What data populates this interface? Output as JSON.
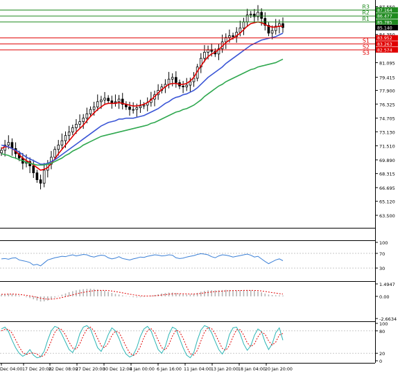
{
  "chart_data": [
    {
      "panel": "price",
      "type": "candlestick",
      "y_ticks": [
        "87.550",
        "85.745",
        "84.350",
        "82.650",
        "81.095",
        "79.415",
        "77.900",
        "76.325",
        "74.705",
        "73.130",
        "71.510",
        "69.890",
        "68.315",
        "66.695",
        "65.120",
        "63.500"
      ],
      "ylim": [
        62.3,
        88.0
      ],
      "levels": [
        {
          "label": "R3",
          "value": 87.164,
          "value_text": "87.164",
          "color": "#1f8a1f"
        },
        {
          "label": "R2",
          "value": 86.477,
          "value_text": "86.477",
          "color": "#1f8a1f"
        },
        {
          "label": "R1",
          "value": 85.785,
          "value_text": "85.785",
          "color": "#1f8a1f"
        },
        {
          "label": "S1",
          "value": 83.952,
          "value_text": "83.952",
          "color": "#e00000"
        },
        {
          "label": "S2",
          "value": 83.263,
          "value_text": "83.263",
          "color": "#e00000"
        },
        {
          "label": "S3",
          "value": 82.574,
          "value_text": "82.574",
          "color": "#e00000"
        }
      ],
      "current_price": 85.14,
      "current_price_text": "85.140",
      "close_series": [
        71.0,
        71.6,
        71.9,
        71.2,
        70.6,
        70.1,
        69.5,
        69.7,
        69.2,
        68.4,
        67.6,
        67.2,
        68.7,
        69.4,
        70.2,
        71.1,
        71.6,
        72.1,
        72.7,
        73.1,
        73.6,
        74.0,
        74.3,
        74.7,
        75.2,
        75.7,
        76.0,
        76.6,
        76.8,
        77.0,
        76.7,
        76.5,
        76.6,
        76.9,
        76.3,
        76.0,
        75.7,
        75.7,
        75.9,
        76.1,
        76.2,
        76.5,
        76.9,
        77.4,
        77.9,
        78.3,
        78.6,
        79.2,
        79.4,
        78.8,
        78.4,
        78.3,
        78.5,
        78.9,
        79.3,
        80.6,
        81.6,
        82.3,
        82.6,
        82.4,
        82.1,
        82.7,
        83.5,
        84.0,
        84.2,
        84.1,
        84.6,
        85.1,
        85.8,
        86.6,
        86.7,
        86.4,
        86.9,
        86.2,
        85.4,
        84.5,
        84.8,
        85.3,
        85.6,
        85.14
      ],
      "moving_averages": [
        {
          "color": "#e00000",
          "values": [
            71.2,
            71.4,
            71.4,
            71.2,
            70.9,
            70.5,
            70.1,
            69.8,
            69.6,
            69.3,
            69.0,
            68.7,
            68.8,
            69.0,
            69.5,
            70.0,
            70.6,
            71.1,
            71.6,
            72.1,
            72.6,
            73.1,
            73.5,
            73.9,
            74.4,
            74.9,
            75.3,
            75.7,
            76.0,
            76.3,
            76.4,
            76.4,
            76.4,
            76.5,
            76.4,
            76.3,
            76.2,
            76.1,
            76.1,
            76.2,
            76.3,
            76.5,
            76.8,
            77.2,
            77.6,
            78.0,
            78.3,
            78.6,
            78.7,
            78.7,
            78.6,
            78.6,
            78.7,
            79.0,
            79.4,
            80.1,
            80.7,
            81.3,
            81.8,
            82.1,
            82.3,
            82.6,
            83.0,
            83.4,
            83.7,
            83.9,
            84.2,
            84.5,
            84.9,
            85.3,
            85.6,
            85.7,
            85.8,
            85.7,
            85.5,
            85.3,
            85.2,
            85.2,
            85.3,
            85.3
          ]
        },
        {
          "color": "#3a55d6",
          "values": [
            71.6,
            71.5,
            71.4,
            71.2,
            71.0,
            70.8,
            70.5,
            70.2,
            70.0,
            69.8,
            69.6,
            69.4,
            69.4,
            69.5,
            69.7,
            69.9,
            70.2,
            70.5,
            70.8,
            71.1,
            71.4,
            71.7,
            72.0,
            72.3,
            72.6,
            72.9,
            73.2,
            73.5,
            73.8,
            74.0,
            74.2,
            74.3,
            74.4,
            74.6,
            74.6,
            74.7,
            74.7,
            74.7,
            74.8,
            74.9,
            75.0,
            75.2,
            75.4,
            75.6,
            75.8,
            76.1,
            76.4,
            76.6,
            76.9,
            77.1,
            77.2,
            77.4,
            77.5,
            77.7,
            77.9,
            78.2,
            78.6,
            79.0,
            79.4,
            79.7,
            80.0,
            80.3,
            80.6,
            81.0,
            81.3,
            81.6,
            81.9,
            82.2,
            82.5,
            82.8,
            83.1,
            83.3,
            83.5,
            83.7,
            83.8,
            83.9,
            84.0,
            84.1,
            84.3,
            84.5
          ]
        },
        {
          "color": "#2fa84f",
          "values": [
            70.6,
            70.5,
            70.4,
            70.2,
            70.1,
            69.9,
            69.8,
            69.6,
            69.5,
            69.4,
            69.3,
            69.3,
            69.3,
            69.4,
            69.5,
            69.7,
            69.9,
            70.1,
            70.4,
            70.6,
            70.9,
            71.1,
            71.3,
            71.6,
            71.8,
            72.0,
            72.2,
            72.4,
            72.6,
            72.7,
            72.8,
            72.9,
            73.0,
            73.1,
            73.2,
            73.3,
            73.4,
            73.5,
            73.6,
            73.7,
            73.8,
            73.9,
            74.1,
            74.2,
            74.4,
            74.6,
            74.8,
            75.0,
            75.2,
            75.4,
            75.5,
            75.7,
            75.8,
            76.0,
            76.2,
            76.5,
            76.8,
            77.2,
            77.5,
            77.8,
            78.1,
            78.4,
            78.6,
            78.9,
            79.1,
            79.3,
            79.5,
            79.7,
            79.9,
            80.1,
            80.3,
            80.4,
            80.6,
            80.7,
            80.8,
            80.9,
            81.0,
            81.1,
            81.3,
            81.5
          ]
        }
      ]
    },
    {
      "panel": "rsi",
      "type": "line",
      "y_ticks": [
        "100",
        "70",
        "30",
        "0"
      ],
      "ylim": [
        0,
        100
      ],
      "color": "#3a7fd6",
      "values": [
        55,
        56,
        54,
        57,
        58,
        52,
        50,
        48,
        45,
        38,
        40,
        36,
        44,
        52,
        55,
        58,
        60,
        62,
        61,
        64,
        66,
        63,
        65,
        67,
        66,
        62,
        60,
        63,
        65,
        64,
        58,
        55,
        57,
        61,
        56,
        54,
        52,
        55,
        57,
        60,
        59,
        62,
        64,
        66,
        65,
        63,
        64,
        66,
        65,
        58,
        56,
        57,
        60,
        62,
        64,
        67,
        69,
        68,
        66,
        61,
        58,
        63,
        66,
        65,
        63,
        60,
        62,
        64,
        66,
        68,
        65,
        60,
        62,
        55,
        48,
        42,
        47,
        52,
        55,
        50
      ]
    },
    {
      "panel": "macd",
      "type": "histogram",
      "y_ticks": [
        "1.4947",
        "0.00",
        "-2.6634"
      ],
      "ylim": [
        -2.6634,
        1.4947
      ],
      "bar_color": "#b4b4b4",
      "signal_color": "#e00000",
      "histogram": [
        0.2,
        0.25,
        0.3,
        0.28,
        0.2,
        0.1,
        0.0,
        -0.1,
        -0.2,
        -0.35,
        -0.5,
        -0.62,
        -0.6,
        -0.5,
        -0.35,
        -0.15,
        0.05,
        0.2,
        0.35,
        0.5,
        0.62,
        0.72,
        0.8,
        0.86,
        0.9,
        0.92,
        0.88,
        0.82,
        0.75,
        0.68,
        0.55,
        0.42,
        0.3,
        0.22,
        0.12,
        0.04,
        -0.04,
        -0.1,
        -0.12,
        -0.1,
        -0.06,
        0.0,
        0.08,
        0.16,
        0.25,
        0.34,
        0.4,
        0.45,
        0.46,
        0.4,
        0.3,
        0.24,
        0.2,
        0.22,
        0.3,
        0.42,
        0.55,
        0.66,
        0.72,
        0.74,
        0.72,
        0.73,
        0.76,
        0.78,
        0.76,
        0.72,
        0.7,
        0.72,
        0.74,
        0.76,
        0.74,
        0.68,
        0.6,
        0.48,
        0.34,
        0.22,
        0.16,
        0.14,
        0.12,
        0.1
      ],
      "signal": [
        0.24,
        0.25,
        0.27,
        0.27,
        0.26,
        0.23,
        0.18,
        0.12,
        0.06,
        -0.02,
        -0.12,
        -0.22,
        -0.3,
        -0.34,
        -0.34,
        -0.3,
        -0.23,
        -0.14,
        -0.04,
        0.07,
        0.18,
        0.29,
        0.39,
        0.48,
        0.56,
        0.63,
        0.68,
        0.71,
        0.72,
        0.72,
        0.69,
        0.64,
        0.57,
        0.5,
        0.42,
        0.34,
        0.26,
        0.19,
        0.13,
        0.08,
        0.05,
        0.04,
        0.05,
        0.07,
        0.11,
        0.16,
        0.21,
        0.26,
        0.3,
        0.32,
        0.32,
        0.31,
        0.29,
        0.28,
        0.28,
        0.31,
        0.36,
        0.42,
        0.48,
        0.53,
        0.57,
        0.6,
        0.63,
        0.66,
        0.68,
        0.69,
        0.69,
        0.7,
        0.71,
        0.72,
        0.72,
        0.71,
        0.69,
        0.65,
        0.59,
        0.52,
        0.45,
        0.39,
        0.33,
        0.28
      ]
    },
    {
      "panel": "stochastic",
      "type": "line",
      "y_ticks": [
        "100",
        "80",
        "20",
        "0"
      ],
      "ylim": [
        0,
        100
      ],
      "k_color": "#2bb5b5",
      "d_color": "#e00000",
      "k": [
        85,
        90,
        78,
        55,
        35,
        20,
        12,
        18,
        30,
        15,
        8,
        10,
        25,
        55,
        80,
        92,
        88,
        70,
        50,
        30,
        22,
        40,
        72,
        90,
        94,
        85,
        60,
        35,
        25,
        45,
        70,
        88,
        80,
        60,
        35,
        18,
        10,
        15,
        35,
        65,
        85,
        92,
        80,
        55,
        30,
        20,
        38,
        70,
        90,
        85,
        60,
        35,
        15,
        8,
        22,
        55,
        82,
        94,
        90,
        75,
        52,
        30,
        18,
        35,
        70,
        88,
        90,
        72,
        45,
        28,
        40,
        68,
        85,
        78,
        50,
        30,
        45,
        75,
        88,
        55
      ],
      "d": [
        80,
        84,
        84,
        74,
        56,
        37,
        22,
        17,
        20,
        21,
        18,
        11,
        14,
        30,
        53,
        76,
        87,
        83,
        69,
        50,
        34,
        31,
        45,
        67,
        85,
        90,
        80,
        60,
        40,
        35,
        47,
        68,
        79,
        76,
        58,
        38,
        21,
        14,
        20,
        38,
        62,
        81,
        86,
        76,
        55,
        35,
        29,
        43,
        66,
        82,
        78,
        60,
        37,
        19,
        15,
        28,
        53,
        77,
        89,
        86,
        72,
        52,
        33,
        28,
        41,
        64,
        83,
        83,
        69,
        48,
        38,
        45,
        64,
        77,
        71,
        53,
        42,
        50,
        69,
        73
      ]
    }
  ],
  "x_axis": {
    "tick_labels": [
      "Dec 04:00",
      "17 Dec 20:00",
      "22 Dec 08:00",
      "27 Dec 20:00",
      "30 Dec 12:00",
      "4 Jan 00:00",
      "6 Jan 16:00",
      "11 Jan 04:00",
      "13 Jan 20:00",
      "18 Jan 04:00",
      "20 Jan 20:00"
    ]
  }
}
